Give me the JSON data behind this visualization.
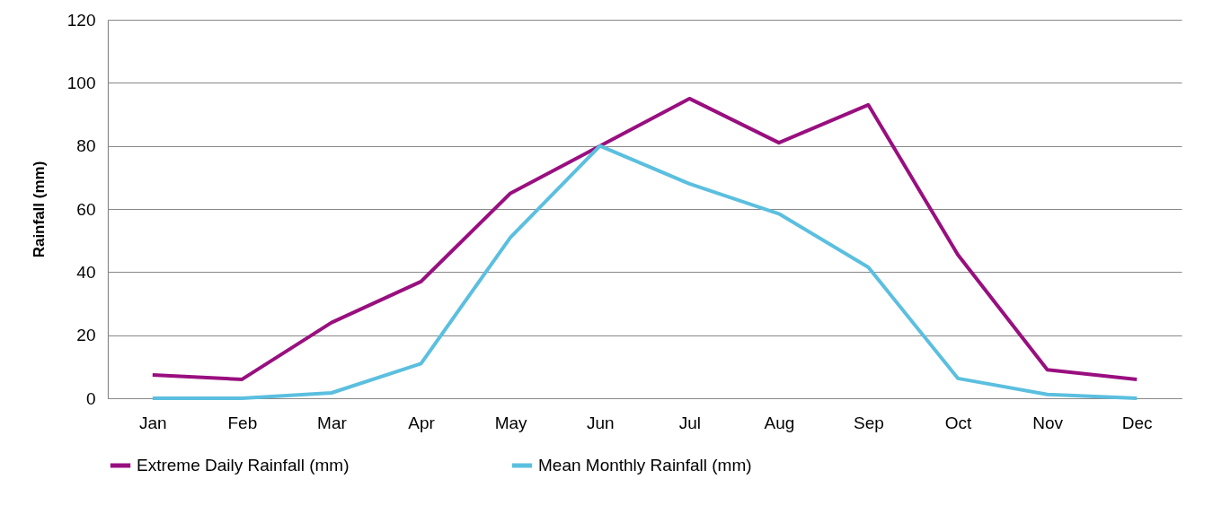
{
  "chart_data": {
    "type": "line",
    "ylabel": "Rainfall (mm)",
    "categories": [
      "Jan",
      "Feb",
      "Mar",
      "Apr",
      "May",
      "Jun",
      "Jul",
      "Aug",
      "Sep",
      "Oct",
      "Nov",
      "Dec"
    ],
    "series": [
      {
        "name": "Extreme Daily Rainfall (mm)",
        "color": "#990f7f",
        "values": [
          7.4,
          6,
          24,
          37,
          65,
          80,
          95,
          81,
          93,
          45.5,
          9,
          6
        ]
      },
      {
        "name": "Mean Monthly Rainfall (mm)",
        "color": "#5bbfdf",
        "values": [
          0,
          0,
          1.7,
          11,
          51,
          80,
          68,
          58.5,
          41.5,
          6.3,
          1.2,
          0
        ]
      }
    ],
    "ylim": [
      0,
      120
    ],
    "yticks": [
      0,
      20,
      40,
      60,
      80,
      100,
      120
    ],
    "grid": "y",
    "legend": "bottom",
    "marker": "none",
    "line_style": "solid"
  }
}
